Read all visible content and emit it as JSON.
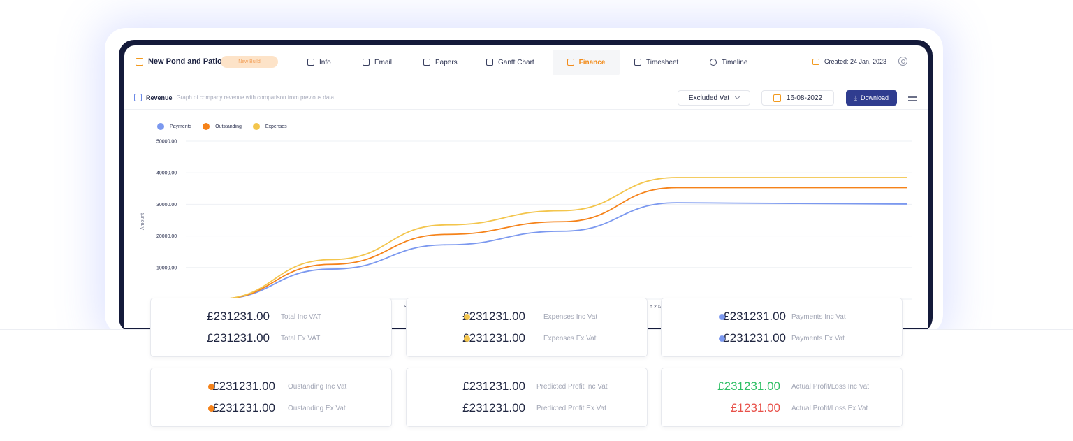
{
  "project": {
    "name": "New Pond and Patio",
    "badge": "New Build"
  },
  "nav": {
    "tabs": [
      {
        "label": "Info",
        "icon": "info-icon"
      },
      {
        "label": "Email",
        "icon": "mail-icon"
      },
      {
        "label": "Papers",
        "icon": "document-icon"
      },
      {
        "label": "Gantt Chart",
        "icon": "gantt-icon"
      },
      {
        "label": "Finance",
        "icon": "bar-chart-icon",
        "active": true
      },
      {
        "label": "Timesheet",
        "icon": "clipboard-icon"
      },
      {
        "label": "Timeline",
        "icon": "clock-icon"
      }
    ],
    "created": "Created: 24 Jan, 2023"
  },
  "revenue": {
    "title": "Revenue",
    "description": "Graph of company revenue with comparison from previous data.",
    "vat_select": "Excluded Vat",
    "date": "16-08-2022",
    "download_label": "Download"
  },
  "colors": {
    "payments": "#7b98ef",
    "outstanding": "#f58219",
    "expenses": "#f3c54c",
    "profit_positive": "#2fbf65",
    "profit_negative": "#e8514a",
    "accent": "#2f3c8f"
  },
  "chart_data": {
    "type": "line",
    "ylabel": "Amount",
    "ylim": [
      0,
      50000
    ],
    "yticks": [
      "50000.00",
      "40000.00",
      "30000.00",
      "20000.00",
      "10000.00"
    ],
    "x": [
      0,
      1,
      2,
      3,
      4,
      5,
      6
    ],
    "series": [
      {
        "name": "Payments",
        "values": [
          0,
          9500,
          17200,
          21500,
          30500,
          30300,
          30100
        ]
      },
      {
        "name": "Outstanding",
        "values": [
          0,
          11000,
          20500,
          24500,
          35300,
          35300,
          35300
        ]
      },
      {
        "name": "Expenses",
        "values": [
          0,
          12500,
          23500,
          28000,
          38500,
          38500,
          38500
        ]
      }
    ],
    "xtick_fragments": [
      "S",
      "n 202"
    ]
  },
  "cards": [
    {
      "rows": [
        {
          "amount": "£231231.00",
          "label": "Total Inc VAT"
        },
        {
          "amount": "£231231.00",
          "label": "Total Ex VAT"
        }
      ]
    },
    {
      "rows": [
        {
          "amount": "£231231.00",
          "label": "Expenses Inc Vat"
        },
        {
          "amount": "£231231.00",
          "label": "Expenses Ex Vat"
        }
      ]
    },
    {
      "rows": [
        {
          "amount": "£231231.00",
          "label": "Payments Inc Vat"
        },
        {
          "amount": "£231231.00",
          "label": "Payments Ex Vat"
        }
      ]
    },
    {
      "rows": [
        {
          "amount": "£231231.00",
          "label": "Oustanding Inc Vat"
        },
        {
          "amount": "£231231.00",
          "label": "Oustanding Ex Vat"
        }
      ]
    },
    {
      "rows": [
        {
          "amount": "£231231.00",
          "label": "Predicted Profit Inc Vat"
        },
        {
          "amount": "£231231.00",
          "label": "Predicted Profit Ex Vat"
        }
      ]
    },
    {
      "rows": [
        {
          "amount": "£231231.00",
          "label": "Actual Profit/Loss Inc Vat"
        },
        {
          "amount": "£1231.00",
          "label": "Actual Profit/Loss Ex Vat"
        }
      ]
    }
  ]
}
